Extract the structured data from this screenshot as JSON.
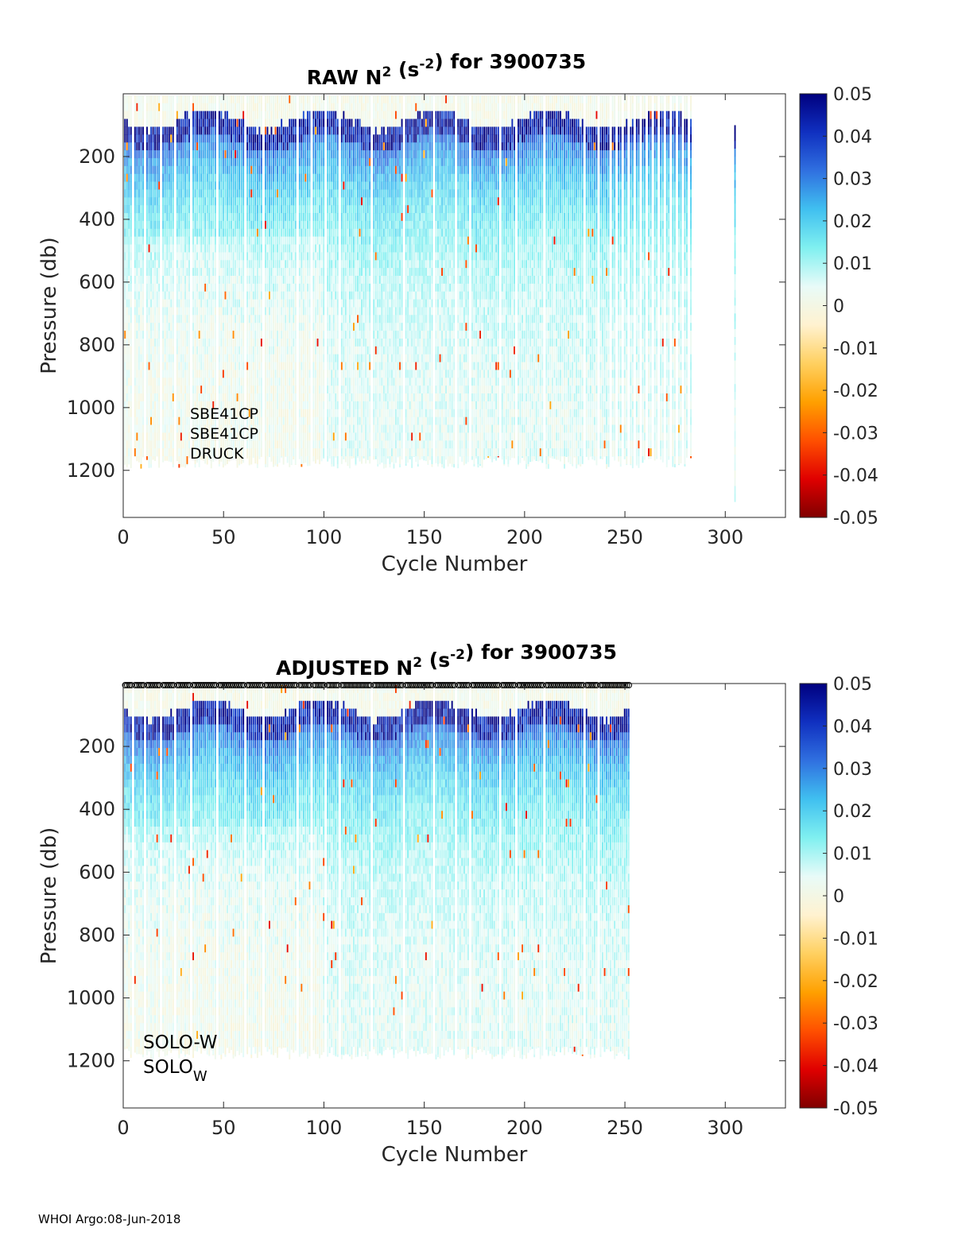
{
  "chart_data": [
    {
      "type": "heatmap",
      "title": {
        "prefix": "RAW N",
        "sup1": "2",
        "mid": " (s",
        "sup2": "-2",
        "suffix": ") for 3900735"
      },
      "xlabel": "Cycle Number",
      "ylabel": "Pressure (db)",
      "xlim": [
        0,
        330
      ],
      "ylim": [
        1350,
        0
      ],
      "xticks": [
        0,
        50,
        100,
        150,
        200,
        250,
        300
      ],
      "yticks": [
        200,
        400,
        600,
        800,
        1000,
        1200
      ],
      "colorbar": {
        "range": [
          -0.05,
          0.05
        ],
        "ticks": [
          "0.05",
          "0.04",
          "0.03",
          "0.02",
          "0.01",
          "0",
          "-0.01",
          "-0.02",
          "-0.03",
          "-0.04",
          "-0.05"
        ],
        "colormap": [
          "#800000",
          "#e00000",
          "#ff5000",
          "#ffa000",
          "#ffd060",
          "#fff2d0",
          "#e8fbf8",
          "#80f0f0",
          "#40c0f0",
          "#3070e0",
          "#1030c0",
          "#00007f"
        ]
      },
      "max_cycle": 283,
      "extra_profiles": [
        305
      ],
      "bottom_pressure": 1175,
      "annotations": [
        "SBE41CP",
        "SBE41CP",
        "DRUCK"
      ],
      "top_markers": false
    },
    {
      "type": "heatmap",
      "title": {
        "prefix": "ADJUSTED N",
        "sup1": "2",
        "mid": " (s",
        "sup2": "-2",
        "suffix": ") for 3900735"
      },
      "xlabel": "Cycle Number",
      "ylabel": "Pressure (db)",
      "xlim": [
        0,
        330
      ],
      "ylim": [
        1350,
        0
      ],
      "xticks": [
        0,
        50,
        100,
        150,
        200,
        250,
        300
      ],
      "yticks": [
        200,
        400,
        600,
        800,
        1000,
        1200
      ],
      "colorbar": {
        "range": [
          -0.05,
          0.05
        ],
        "ticks": [
          "0.05",
          "0.04",
          "0.03",
          "0.02",
          "0.01",
          "0",
          "-0.01",
          "-0.02",
          "-0.03",
          "-0.04",
          "-0.05"
        ],
        "colormap": [
          "#800000",
          "#e00000",
          "#ff5000",
          "#ffa000",
          "#ffd060",
          "#fff2d0",
          "#e8fbf8",
          "#80f0f0",
          "#40c0f0",
          "#3070e0",
          "#1030c0",
          "#00007f"
        ]
      },
      "max_cycle": 252,
      "extra_profiles": [],
      "bottom_pressure": 1175,
      "annotations": [
        "SOLO-W"
      ],
      "annotation_sub": {
        "base": "SOLO",
        "sub": "W"
      },
      "top_markers": true
    }
  ],
  "footer": "WHOI Argo:08-Jun-2018"
}
